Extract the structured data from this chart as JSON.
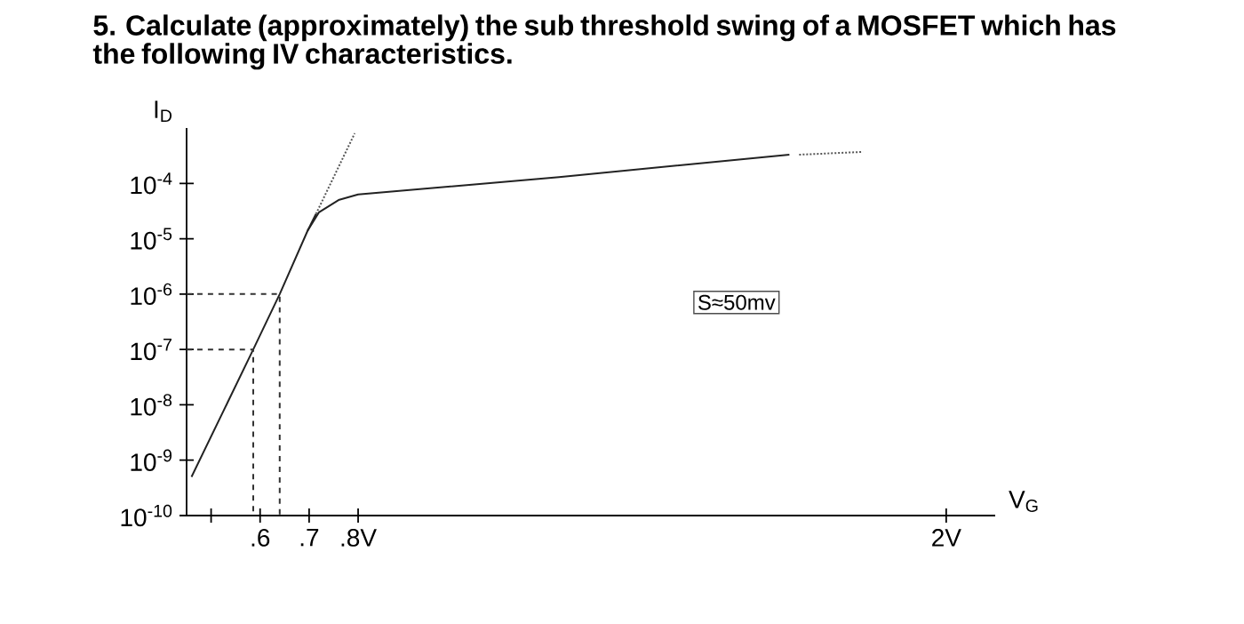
{
  "chart_data": {
    "type": "line",
    "title": "5. Calculate (approximately) the sub threshold swing of a MOSFET which has the following IV characteristics.",
    "xlabel": "V$_{G}$",
    "ylabel": "I$_{D}$",
    "annotations": [
      "S≈50mv"
    ],
    "log": "y",
    "xlim": [
      0.45,
      2.1
    ],
    "ylim": [
      1e-10,
      0.001
    ],
    "xticks": [
      {
        "value": 0.5,
        "label": null
      },
      {
        "value": 0.6,
        "label": ".6"
      },
      {
        "value": 0.7,
        "label": ".7"
      },
      {
        "value": 0.8,
        "label": ".8V"
      },
      {
        "value": 2,
        "label": "2V"
      }
    ],
    "yticks": [
      {
        "value": 1e-10,
        "label": "10$^{-10}$"
      },
      {
        "value": 1e-09,
        "label": "10$^{-9}$"
      },
      {
        "value": 1e-08,
        "label": "10$^{-8}$"
      },
      {
        "value": 1e-07,
        "label": "10$^{-7}$"
      },
      {
        "value": 1e-06,
        "label": "10$^{-6}$"
      },
      {
        "value": 1e-05,
        "label": "10$^{-5}$"
      },
      {
        "value": 0.0001,
        "label": "10$^{-4}$"
      }
    ],
    "series": [
      {
        "color": "#222222",
        "line_style": "solid",
        "x": [
          0.46,
          0.586,
          0.64,
          0.697,
          0.72,
          0.76,
          0.8,
          1.21,
          1.68
        ],
        "values": [
          5e-10,
          1e-07,
          1e-06,
          1.4e-05,
          3e-05,
          5e-05,
          6.3e-05,
          0.00013,
          0.00033
        ]
      },
      {
        "color": "#222222",
        "line_style": "solid",
        "x": [
          0.697,
          0.714
        ],
        "values": [
          1.4e-05,
          2.8e-05
        ]
      },
      {
        "color": "#555555",
        "line_style": "dotted",
        "x": [
          0.714,
          0.793
        ],
        "values": [
          2.8e-05,
          0.0008
        ]
      },
      {
        "color": "#555555",
        "line_style": "dotted",
        "x": [
          1.7,
          1.83
        ],
        "values": [
          0.00033,
          0.00037
        ]
      },
      {
        "color": "#333333",
        "line_style": "dashed",
        "x": [
          0.45,
          0.586,
          0.586
        ],
        "values": [
          1e-07,
          1e-07,
          1e-10
        ]
      },
      {
        "color": "#333333",
        "line_style": "dashed",
        "x": [
          0.45,
          0.64,
          0.64
        ],
        "values": [
          1e-06,
          1e-06,
          1e-10
        ]
      }
    ]
  }
}
